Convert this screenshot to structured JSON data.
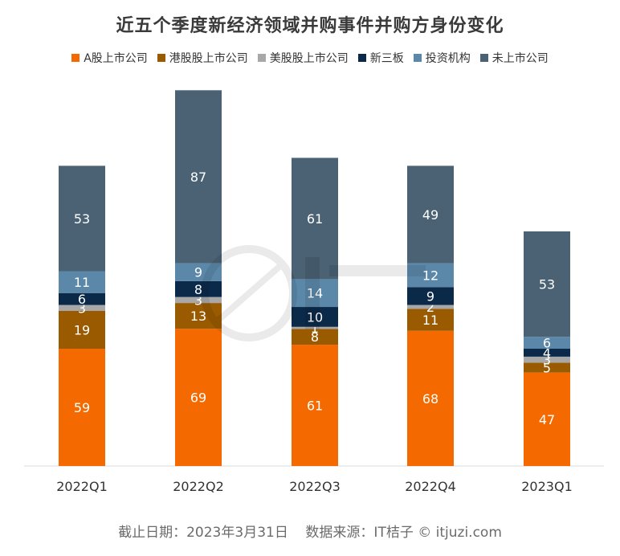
{
  "chart_data": {
    "type": "bar",
    "stacked": true,
    "title": "近五个季度新经济领域并购事件并购方身份变化",
    "xlabel": "",
    "ylabel": "",
    "ylim": [
      0,
      196
    ],
    "grid": false,
    "legend_position": "top",
    "categories": [
      "2022Q1",
      "2022Q2",
      "2022Q3",
      "2022Q4",
      "2023Q1"
    ],
    "series": [
      {
        "name": "A股上市公司",
        "color": "#f46a00",
        "values": [
          59,
          69,
          61,
          68,
          47
        ]
      },
      {
        "name": "港股股上市公司",
        "color": "#9a5a00",
        "values": [
          19,
          13,
          8,
          11,
          5
        ]
      },
      {
        "name": "美股股上市公司",
        "color": "#a8a8a8",
        "values": [
          3,
          3,
          1,
          2,
          3
        ]
      },
      {
        "name": "新三板",
        "color": "#0b2a4a",
        "values": [
          6,
          8,
          10,
          9,
          4
        ]
      },
      {
        "name": "投资机构",
        "color": "#5b87a8",
        "values": [
          11,
          9,
          14,
          12,
          6
        ]
      },
      {
        "name": "未上市公司",
        "color": "#4a6274",
        "values": [
          53,
          87,
          61,
          49,
          53
        ]
      }
    ]
  },
  "footer": "截止日期：2023年3月31日    数据来源：IT桔子 © itjuzi.com"
}
